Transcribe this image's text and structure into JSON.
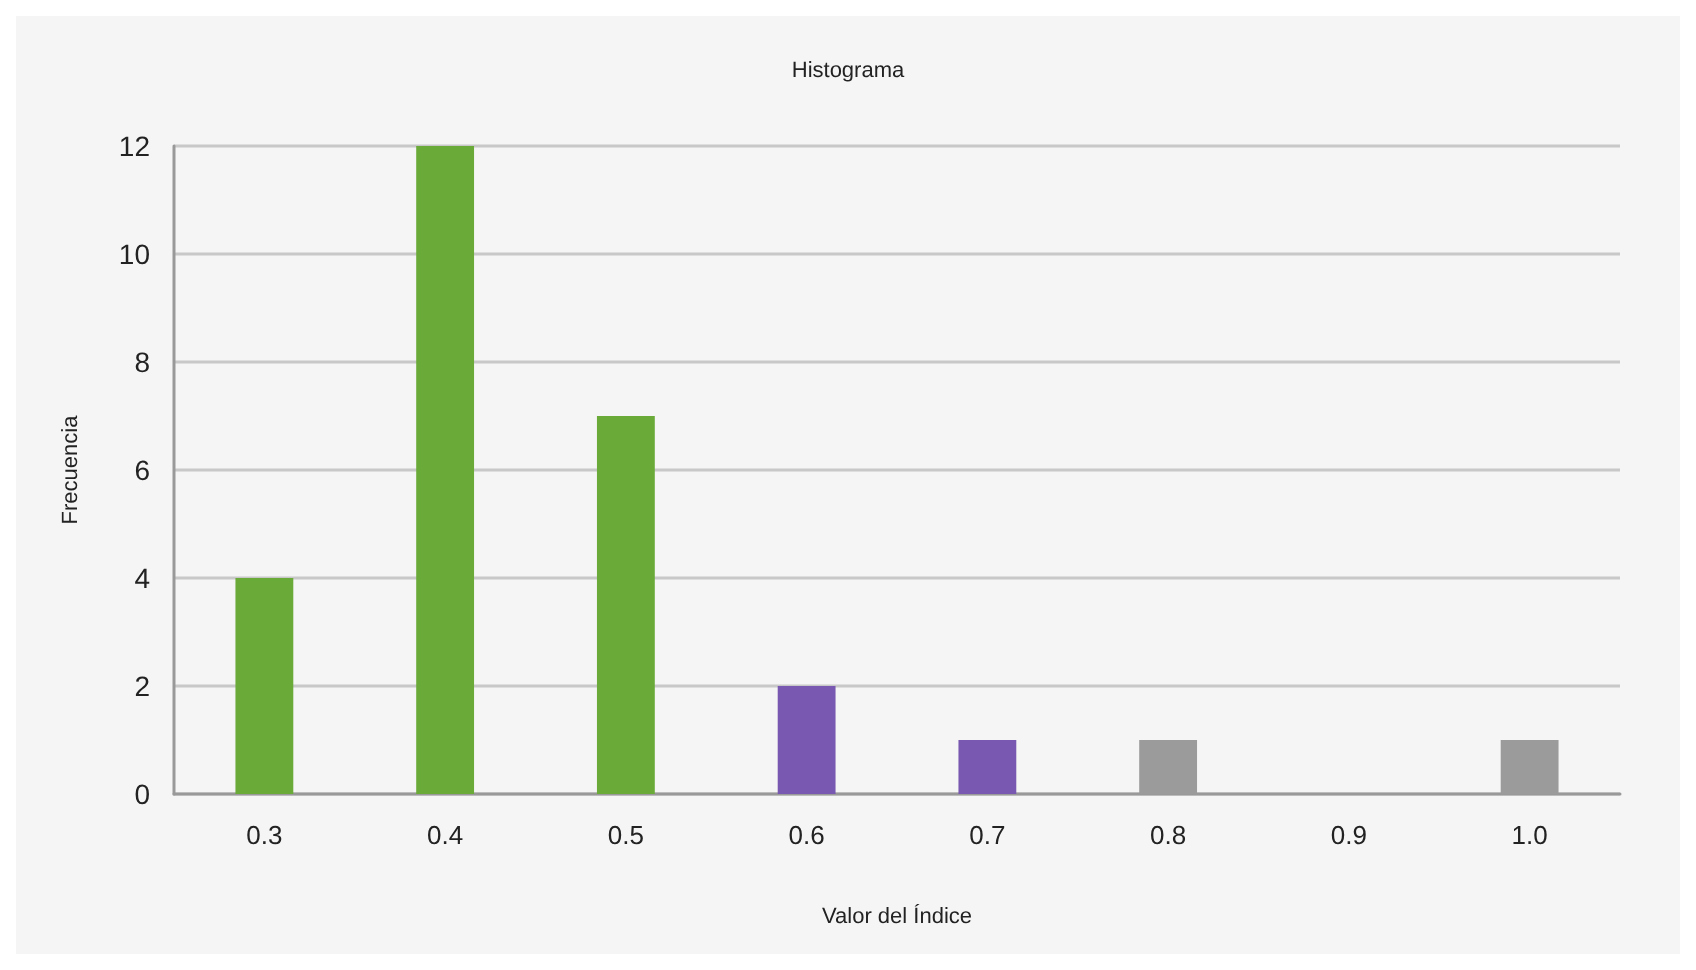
{
  "chart_data": {
    "type": "bar",
    "title": "Histograma",
    "xlabel": "Valor del Índice",
    "ylabel": "Frecuencia",
    "categories": [
      "0.3",
      "0.4",
      "0.5",
      "0.6",
      "0.7",
      "0.8",
      "0.9",
      "1.0"
    ],
    "values": [
      4,
      12,
      7,
      2,
      1,
      1,
      0,
      1
    ],
    "colors": [
      "#6aaa38",
      "#6aaa38",
      "#6aaa38",
      "#7858b0",
      "#7858b0",
      "#9b9b9b",
      "#6aaa38",
      "#9b9b9b"
    ],
    "ylim": [
      0,
      12
    ],
    "yticks": [
      0,
      2,
      4,
      6,
      8,
      10,
      12
    ],
    "grid": "y"
  }
}
